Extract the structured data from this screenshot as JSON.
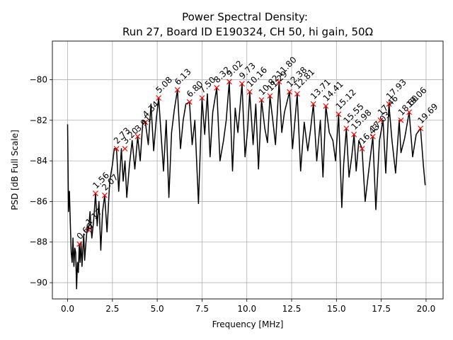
{
  "chart_data": {
    "type": "line",
    "title": "Power Spectral Density:",
    "subtitle": "Run 27, Board ID E190324, CH 50, hi gain, 50Ω",
    "xlabel": "Frequency [MHz]",
    "ylabel": "PSD [dB Full Scale]",
    "xlim": [
      -0.85,
      20.95
    ],
    "ylim": [
      -90.8,
      -78.1
    ],
    "xticks": [
      0.0,
      2.5,
      5.0,
      7.5,
      10.0,
      12.5,
      15.0,
      17.5,
      20.0
    ],
    "xtick_labels": [
      "0.0",
      "2.5",
      "5.0",
      "7.5",
      "10.0",
      "12.5",
      "15.0",
      "17.5",
      "20.0"
    ],
    "yticks": [
      -90,
      -88,
      -86,
      -84,
      -82,
      -80
    ],
    "ytick_labels": [
      "−90",
      "−88",
      "−86",
      "−84",
      "−82",
      "−80"
    ],
    "grid": true,
    "colors": {
      "line": "#000000",
      "marker": "#ff0000"
    },
    "series": [
      {
        "x": [
          0.0,
          0.05,
          0.1,
          0.15,
          0.2,
          0.25,
          0.3,
          0.35,
          0.4,
          0.45,
          0.5,
          0.55,
          0.6,
          0.65,
          0.7,
          0.75,
          0.8,
          0.85,
          0.9,
          0.95,
          1.0,
          1.1,
          1.17,
          1.25,
          1.35,
          1.45,
          1.56,
          1.65,
          1.75,
          1.85,
          1.95,
          2.07,
          2.2,
          2.35,
          2.5,
          2.6,
          2.73,
          2.85,
          3.0,
          3.1,
          3.2,
          3.3,
          3.45,
          3.6,
          3.75,
          3.91,
          4.05,
          4.2,
          4.34,
          4.5,
          4.65,
          4.8,
          4.95,
          5.08,
          5.2,
          5.35,
          5.5,
          5.65,
          5.8,
          5.95,
          6.13,
          6.3,
          6.45,
          6.6,
          6.8,
          6.95,
          7.1,
          7.3,
          7.5,
          7.65,
          7.8,
          7.95,
          8.1,
          8.32,
          8.5,
          8.7,
          8.85,
          9.02,
          9.2,
          9.35,
          9.5,
          9.73,
          9.9,
          10.05,
          10.16,
          10.35,
          10.5,
          10.65,
          10.82,
          11.0,
          11.15,
          11.29,
          11.45,
          11.6,
          11.8,
          11.95,
          12.1,
          12.38,
          12.55,
          12.81,
          13.0,
          13.2,
          13.4,
          13.55,
          13.71,
          13.9,
          14.1,
          14.25,
          14.41,
          14.6,
          14.8,
          14.95,
          15.12,
          15.3,
          15.4,
          15.55,
          15.7,
          15.85,
          15.98,
          16.1,
          16.25,
          16.43,
          16.6,
          16.8,
          17.03,
          17.2,
          17.4,
          17.6,
          17.75,
          17.93,
          18.1,
          18.3,
          18.5,
          18.6,
          18.8,
          19.06,
          19.25,
          19.45,
          19.69,
          19.85,
          19.95
        ],
        "y": [
          -82.2,
          -86.5,
          -85.5,
          -87.0,
          -88.5,
          -89.0,
          -87.8,
          -89.2,
          -88.3,
          -88.5,
          -90.3,
          -89.0,
          -89.5,
          -88.1,
          -89.0,
          -88.0,
          -89.2,
          -88.4,
          -87.6,
          -88.9,
          -88.3,
          -87.2,
          -87.4,
          -86.5,
          -87.8,
          -87.0,
          -85.6,
          -87.2,
          -86.0,
          -88.4,
          -86.5,
          -85.7,
          -87.5,
          -85.0,
          -84.2,
          -83.4,
          -83.4,
          -85.5,
          -83.4,
          -85.0,
          -84.0,
          -85.8,
          -84.2,
          -83.0,
          -84.4,
          -82.8,
          -84.0,
          -82.0,
          -82.1,
          -83.2,
          -81.2,
          -83.5,
          -81.9,
          -80.9,
          -82.5,
          -84.5,
          -82.0,
          -85.8,
          -82.6,
          -81.5,
          -80.5,
          -83.4,
          -82.0,
          -81.2,
          -81.1,
          -83.2,
          -82.0,
          -86.1,
          -80.9,
          -82.7,
          -80.7,
          -83.8,
          -81.6,
          -80.4,
          -84.0,
          -83.0,
          -82.0,
          -80.1,
          -84.5,
          -81.4,
          -82.6,
          -80.2,
          -83.8,
          -82.4,
          -80.6,
          -83.2,
          -81.2,
          -84.4,
          -81.0,
          -82.4,
          -83.1,
          -80.8,
          -82.0,
          -83.2,
          -80.1,
          -82.6,
          -81.6,
          -80.6,
          -83.4,
          -80.7,
          -84.5,
          -82.1,
          -83.5,
          -82.5,
          -81.2,
          -84.0,
          -82.0,
          -84.8,
          -81.3,
          -82.6,
          -83.0,
          -84.0,
          -81.7,
          -86.3,
          -84.2,
          -82.4,
          -84.8,
          -83.8,
          -82.7,
          -84.5,
          -83.0,
          -83.4,
          -86.0,
          -84.5,
          -82.8,
          -86.4,
          -83.0,
          -82.0,
          -84.6,
          -81.2,
          -83.0,
          -84.6,
          -82.0,
          -83.6,
          -82.9,
          -81.6,
          -83.8,
          -82.7,
          -82.4,
          -84.2,
          -85.2
        ]
      }
    ],
    "peaks": [
      {
        "x": 0.66,
        "y": -88.1,
        "label": "0.66"
      },
      {
        "x": 1.17,
        "y": -87.4,
        "label": "1.17"
      },
      {
        "x": 1.56,
        "y": -85.6,
        "label": "1.56"
      },
      {
        "x": 2.07,
        "y": -85.7,
        "label": "2.07"
      },
      {
        "x": 2.73,
        "y": -83.4,
        "label": "2.73"
      },
      {
        "x": 3.2,
        "y": -83.4,
        "label": "3.20"
      },
      {
        "x": 3.91,
        "y": -82.8,
        "label": "3.91"
      },
      {
        "x": 4.34,
        "y": -82.1,
        "label": "4.34"
      },
      {
        "x": 5.08,
        "y": -80.9,
        "label": "5.08"
      },
      {
        "x": 6.13,
        "y": -80.5,
        "label": "6.13"
      },
      {
        "x": 6.8,
        "y": -81.1,
        "label": "6.80"
      },
      {
        "x": 7.5,
        "y": -80.9,
        "label": "7.50"
      },
      {
        "x": 8.32,
        "y": -80.4,
        "label": "8.32"
      },
      {
        "x": 9.02,
        "y": -80.1,
        "label": "9.02"
      },
      {
        "x": 9.73,
        "y": -80.2,
        "label": "9.73"
      },
      {
        "x": 10.16,
        "y": -80.6,
        "label": "10.16"
      },
      {
        "x": 10.82,
        "y": -81.0,
        "label": "10.82"
      },
      {
        "x": 11.29,
        "y": -80.8,
        "label": "11.29"
      },
      {
        "x": 11.8,
        "y": -80.1,
        "label": "11.80"
      },
      {
        "x": 12.38,
        "y": -80.6,
        "label": "12.38"
      },
      {
        "x": 12.81,
        "y": -80.7,
        "label": "12.81"
      },
      {
        "x": 13.71,
        "y": -81.2,
        "label": "13.71"
      },
      {
        "x": 14.41,
        "y": -81.3,
        "label": "14.41"
      },
      {
        "x": 15.12,
        "y": -81.7,
        "label": "15.12"
      },
      {
        "x": 15.55,
        "y": -82.4,
        "label": "15.55"
      },
      {
        "x": 15.98,
        "y": -82.7,
        "label": "15.98"
      },
      {
        "x": 16.43,
        "y": -83.4,
        "label": "16.43"
      },
      {
        "x": 17.03,
        "y": -82.8,
        "label": "17.03"
      },
      {
        "x": 17.46,
        "y": -82.0,
        "label": "17.46"
      },
      {
        "x": 17.93,
        "y": -81.2,
        "label": "17.93"
      },
      {
        "x": 18.6,
        "y": -82.0,
        "label": "18.60"
      },
      {
        "x": 19.06,
        "y": -81.6,
        "label": "19.06"
      },
      {
        "x": 19.69,
        "y": -82.4,
        "label": "19.69"
      }
    ]
  }
}
